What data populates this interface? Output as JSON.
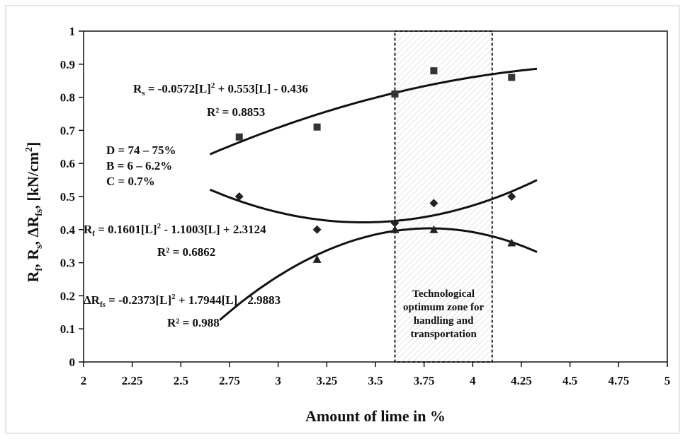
{
  "chart_data": {
    "type": "scatter",
    "title": "",
    "xlabel": "Amount of lime in %",
    "ylabel": "Rf, Rs, ΔRfs, [kN/cm²]",
    "xlim": [
      2,
      5
    ],
    "ylim": [
      0,
      1
    ],
    "x_ticks": [
      "2",
      "2.25",
      "2.5",
      "2.75",
      "3",
      "3.25",
      "3.5",
      "3.75",
      "4",
      "4.25",
      "4.5",
      "4.75",
      "5"
    ],
    "y_ticks": [
      "0",
      "0.1",
      "0.2",
      "0.3",
      "0.4",
      "0.5",
      "0.6",
      "0.7",
      "0.8",
      "0.9",
      "1"
    ],
    "series": [
      {
        "marker": "square",
        "points": [
          [
            2.8,
            0.68
          ],
          [
            3.2,
            0.71
          ],
          [
            3.6,
            0.81
          ],
          [
            3.8,
            0.88
          ],
          [
            4.2,
            0.86
          ]
        ],
        "fit": {
          "a": -0.0572,
          "b": 0.553,
          "c": -0.436,
          "xmin": 2.65,
          "xmax": 4.33
        },
        "equation": "Rs = -0.0572[L]² + 0.553[L] - 0.436",
        "r2": "R² = 0.8853"
      },
      {
        "marker": "diamond",
        "points": [
          [
            2.8,
            0.5
          ],
          [
            3.2,
            0.4
          ],
          [
            3.6,
            0.42
          ],
          [
            3.8,
            0.48
          ],
          [
            4.2,
            0.5
          ]
        ],
        "fit": {
          "a": 0.1601,
          "b": -1.1003,
          "c": 2.3124,
          "xmin": 2.65,
          "xmax": 4.33
        },
        "equation": "Rf = 0.1601[L]² - 1.1003[L] + 2.3124",
        "r2": "R² = 0.6862"
      },
      {
        "marker": "triangle",
        "points": [
          [
            3.2,
            0.31
          ],
          [
            3.6,
            0.4
          ],
          [
            3.8,
            0.4
          ],
          [
            4.2,
            0.36
          ]
        ],
        "fit": {
          "a": -0.2373,
          "b": 1.7944,
          "c": -2.9883,
          "xmin": 2.7,
          "xmax": 4.33
        },
        "equation": "ΔRfs = -0.2373[L]² + 1.7944[L] - 2.9883",
        "r2": "R² = 0.988"
      }
    ],
    "zone": {
      "x_start": 3.6,
      "x_end": 4.1,
      "label": [
        "Technological",
        "optimum zone for",
        "handling and",
        "transportation"
      ]
    },
    "conditions": [
      "D = 74 – 75%",
      "B = 6 – 6.2%",
      "C = 0.7%"
    ],
    "grid": false
  }
}
